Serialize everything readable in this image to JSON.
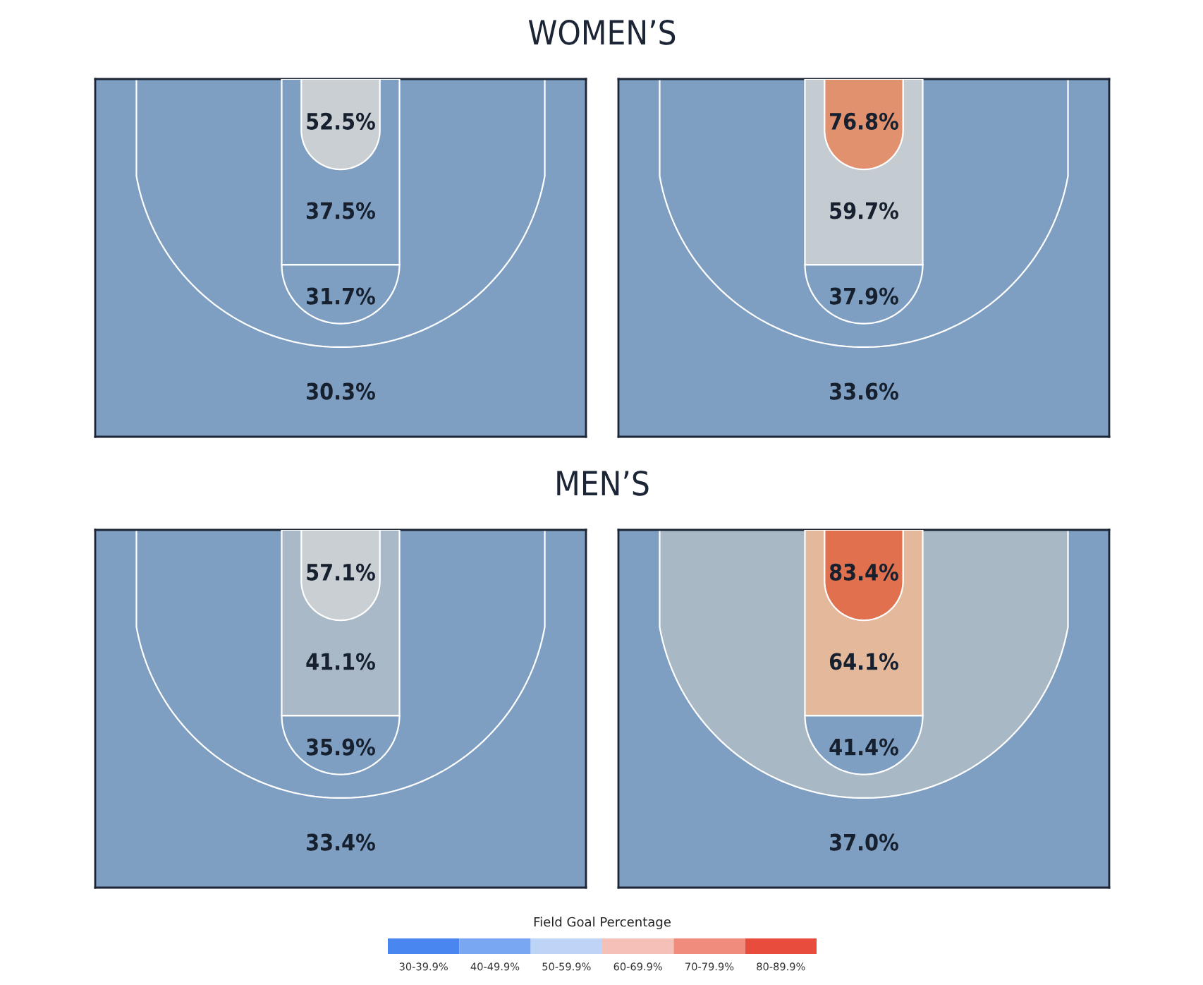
{
  "chart_data": [
    {
      "type": "other",
      "title": "WOMEN’S",
      "values": [
        52.5,
        37.5,
        31.7,
        null,
        30.3
      ],
      "value_labels": [
        "52.5%",
        "37.5%",
        "31.7%",
        null,
        "30.3%"
      ],
      "colors": [
        "#c9cfd3",
        "#7f9fc2",
        "#7f9fc2",
        "#7f9fc2",
        "#7f9fc2"
      ]
    },
    {
      "type": "other",
      "values": [
        76.8,
        59.7,
        37.9,
        null,
        33.6
      ],
      "value_labels": [
        "76.8%",
        "59.7%",
        "37.9%",
        null,
        "33.6%"
      ],
      "colors": [
        "#e2916f",
        "#c4cbd1",
        "#7f9fc2",
        "#7f9fc2",
        "#7f9fc2"
      ]
    },
    {
      "type": "other",
      "title": "MEN’S",
      "values": [
        57.1,
        41.1,
        35.9,
        null,
        33.4
      ],
      "value_labels": [
        "57.1%",
        "41.1%",
        "35.9%",
        null,
        "33.4%"
      ],
      "colors": [
        "#c9cfd3",
        "#aab9c8",
        "#7f9fc2",
        "#7f9fc2",
        "#7f9fc2"
      ]
    },
    {
      "type": "other",
      "values": [
        83.4,
        64.1,
        41.4,
        null,
        37.0
      ],
      "value_labels": [
        "83.4%",
        "64.1%",
        "41.4%",
        null,
        "37.0%"
      ],
      "colors": [
        "#e1704f",
        "#e3b89b",
        "#7f9fc2",
        "#a9b8c5",
        "#7f9fc2"
      ]
    },
    {
      "type": "other",
      "title": "Field Goal Percentage",
      "categories": [
        "30-39.9%",
        "40-49.9%",
        "50-59.9%",
        "60-69.9%",
        "70-79.9%",
        "80-89.9%"
      ],
      "colors": [
        "#4a86f0",
        "#7aa7f2",
        "#bdd4f7",
        "#f4c0b8",
        "#ef8c7e",
        "#e84c3d"
      ]
    }
  ]
}
